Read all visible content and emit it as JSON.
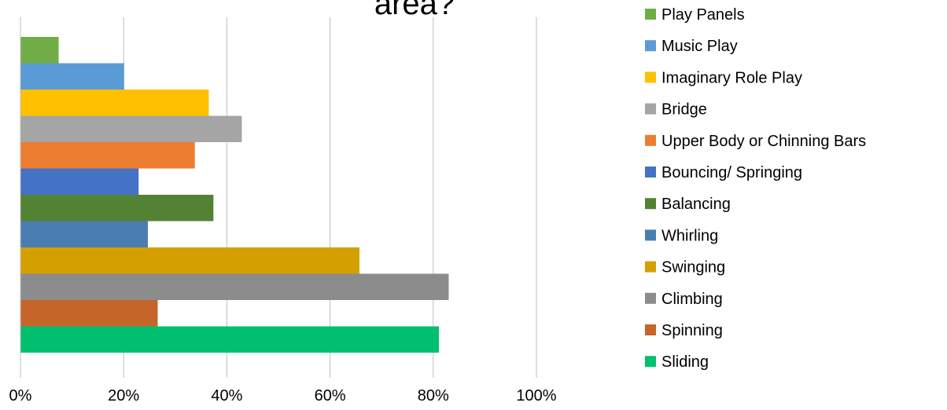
{
  "chart_data": {
    "type": "bar",
    "orientation": "horizontal",
    "title": "area?",
    "categories": [
      "Play Panels",
      "Music Play",
      "Imaginary Role Play",
      "Bridge",
      "Upper Body or Chinning Bars",
      "Bouncing/ Springing",
      "Balancing",
      "Whirling",
      "Swinging",
      "Climbing",
      "Spinning",
      "Sliding"
    ],
    "values": [
      0.074,
      0.201,
      0.365,
      0.429,
      0.338,
      0.229,
      0.374,
      0.247,
      0.657,
      0.83,
      0.266,
      0.811
    ],
    "colors": [
      "#70ad47",
      "#5b9bd5",
      "#ffc000",
      "#a5a5a5",
      "#ed7d31",
      "#4472c4",
      "#548235",
      "#4a7eb2",
      "#d4a000",
      "#8c8c8c",
      "#c5652a",
      "#00bf6f"
    ],
    "xlim": [
      0,
      1
    ],
    "xticks": [
      0,
      0.2,
      0.4,
      0.6,
      0.8,
      1.0
    ],
    "xtick_labels": [
      "0%",
      "20%",
      "40%",
      "60%",
      "80%",
      "100%"
    ],
    "grid": "vertical",
    "legend": {
      "position": "right",
      "entries": [
        "Play Panels",
        "Music Play",
        "Imaginary Role Play",
        "Bridge",
        "Upper Body or Chinning Bars",
        "Bouncing/ Springing",
        "Balancing",
        "Whirling",
        "Swinging",
        "Climbing",
        "Spinning",
        "Sliding"
      ]
    }
  }
}
